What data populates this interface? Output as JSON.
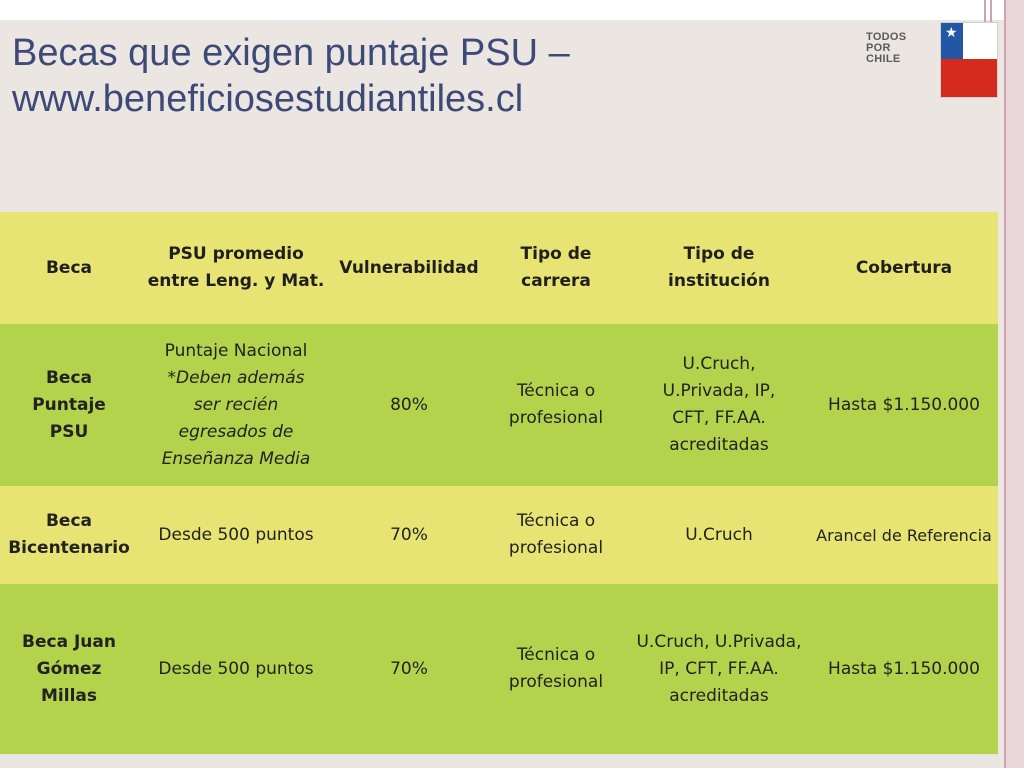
{
  "slide": {
    "title_line1": "Becas que exigen puntaje PSU –",
    "title_line2": "www.beneficiosestudiantiles.cl",
    "logo": {
      "line1": "TODOS",
      "line2": "POR",
      "line3": "CHILE"
    }
  },
  "table": {
    "headers": {
      "beca": "Beca",
      "psu": "PSU promedio entre Leng. y Mat.",
      "vulnerabilidad": "Vulnerabilidad",
      "tipo_carrera": "Tipo de carrera",
      "tipo_institucion": "Tipo de institución",
      "cobertura": "Cobertura"
    },
    "rows": [
      {
        "beca": "Beca Puntaje PSU",
        "psu_main": "Puntaje Nacional",
        "psu_note": "*Deben además ser recién egresados de Enseñanza Media",
        "vulnerabilidad": "80%",
        "tipo_carrera": "Técnica o profesional",
        "tipo_institucion": "U.Cruch, U.Privada, IP, CFT, FF.AA. acreditadas",
        "cobertura": "Hasta $1.150.000"
      },
      {
        "beca": "Beca Bicentenario",
        "psu_main": "Desde 500 puntos",
        "vulnerabilidad": "70%",
        "tipo_carrera": "Técnica o profesional",
        "tipo_institucion": "U.Cruch",
        "cobertura": "Arancel de Referencia"
      },
      {
        "beca": "Beca Juan Gómez Millas",
        "psu_main": "Desde 500 puntos",
        "vulnerabilidad": "70%",
        "tipo_carrera": "Técnica o profesional",
        "tipo_institucion": "U.Cruch, U.Privada, IP, CFT, FF.AA. acreditadas",
        "cobertura": "Hasta $1.150.000"
      }
    ]
  },
  "colors": {
    "background": "#ebe6e2",
    "title": "#3d4a78",
    "row_yellow": "#e8e473",
    "row_green": "#b3d34d",
    "flag_blue": "#2456a6",
    "flag_red": "#d52b1e"
  }
}
